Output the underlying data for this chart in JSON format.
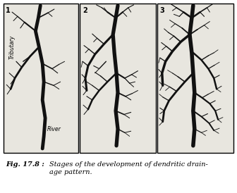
{
  "fig_label": "Fig. 17.8 :",
  "caption": "Stages of the development of dendritic drain-\nage pattern.",
  "panel_labels": [
    "1",
    "2",
    "3"
  ],
  "panel_bg": "#e8e6df",
  "branch_color": "#111111",
  "label_tributary": "Tributary",
  "label_river": "River",
  "figsize": [
    3.36,
    2.74
  ],
  "dpi": 100
}
